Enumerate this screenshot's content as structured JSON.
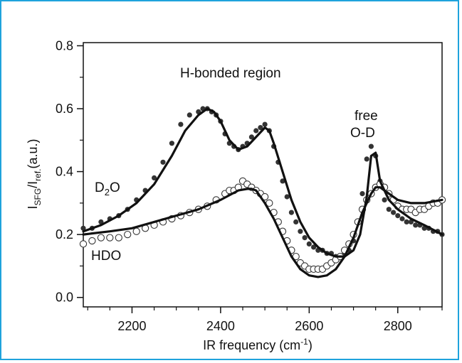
{
  "frame_color": "#1fa3dc",
  "chart_data": {
    "type": "line",
    "xlabel": "IR frequency (cm",
    "xlabel_sup": "-1",
    "xlabel_end": ")",
    "ylabel_main": "I",
    "ylabel_sub1": "SFG",
    "ylabel_mid": "/I",
    "ylabel_sub2": "ref.",
    "ylabel_end": "(a.u.)",
    "xlim": [
      2090,
      2900
    ],
    "ylim": [
      -0.03,
      0.81
    ],
    "x_ticks": [
      2200,
      2400,
      2600,
      2800
    ],
    "x_tick_labels": [
      "2200",
      "2400",
      "2600",
      "2800"
    ],
    "y_ticks": [
      0.0,
      0.2,
      0.4,
      0.6,
      0.8
    ],
    "y_tick_labels": [
      "0.0",
      "0.2",
      "0.4",
      "0.6",
      "0.8"
    ],
    "grid": false,
    "annotations": {
      "region": "H-bonded region",
      "free_line1": "free",
      "free_line2": "O-D",
      "d2o_main": "D",
      "d2o_sub": "2",
      "d2o_end": "O",
      "hdo": "HDO"
    },
    "series": [
      {
        "id": "d2o-data",
        "marker": "filled-circle",
        "color": "#333333",
        "x": [
          2090,
          2110,
          2130,
          2150,
          2170,
          2190,
          2210,
          2230,
          2250,
          2270,
          2290,
          2310,
          2330,
          2350,
          2360,
          2370,
          2380,
          2390,
          2400,
          2410,
          2420,
          2430,
          2440,
          2450,
          2460,
          2470,
          2480,
          2490,
          2500,
          2510,
          2520,
          2530,
          2540,
          2550,
          2560,
          2570,
          2580,
          2590,
          2600,
          2610,
          2620,
          2630,
          2640,
          2650,
          2660,
          2670,
          2680,
          2690,
          2700,
          2710,
          2720,
          2730,
          2740,
          2750,
          2760,
          2770,
          2780,
          2790,
          2800,
          2810,
          2820,
          2830,
          2840,
          2850,
          2860,
          2870,
          2880,
          2890,
          2900
        ],
        "y": [
          0.22,
          0.22,
          0.24,
          0.25,
          0.26,
          0.28,
          0.31,
          0.34,
          0.38,
          0.43,
          0.49,
          0.55,
          0.58,
          0.59,
          0.6,
          0.6,
          0.59,
          0.58,
          0.56,
          0.52,
          0.49,
          0.48,
          0.47,
          0.48,
          0.49,
          0.51,
          0.53,
          0.54,
          0.55,
          0.53,
          0.48,
          0.43,
          0.37,
          0.32,
          0.27,
          0.24,
          0.21,
          0.19,
          0.17,
          0.16,
          0.15,
          0.15,
          0.14,
          0.14,
          0.13,
          0.13,
          0.14,
          0.15,
          0.18,
          0.24,
          0.33,
          0.44,
          0.48,
          0.45,
          0.37,
          0.31,
          0.28,
          0.27,
          0.26,
          0.25,
          0.24,
          0.24,
          0.23,
          0.23,
          0.22,
          0.22,
          0.21,
          0.21,
          0.2
        ]
      },
      {
        "id": "hdo-data",
        "marker": "open-circle",
        "color": "#333333",
        "x": [
          2090,
          2110,
          2130,
          2150,
          2170,
          2190,
          2210,
          2230,
          2250,
          2270,
          2290,
          2310,
          2330,
          2350,
          2370,
          2390,
          2410,
          2420,
          2430,
          2440,
          2450,
          2460,
          2470,
          2480,
          2490,
          2500,
          2510,
          2520,
          2530,
          2540,
          2550,
          2560,
          2570,
          2580,
          2590,
          2600,
          2610,
          2620,
          2630,
          2640,
          2650,
          2660,
          2670,
          2680,
          2690,
          2700,
          2710,
          2720,
          2730,
          2740,
          2750,
          2760,
          2770,
          2780,
          2790,
          2800,
          2810,
          2820,
          2830,
          2840,
          2850,
          2860,
          2870,
          2880,
          2890,
          2900
        ],
        "y": [
          0.17,
          0.18,
          0.19,
          0.19,
          0.19,
          0.2,
          0.21,
          0.22,
          0.23,
          0.24,
          0.25,
          0.26,
          0.27,
          0.28,
          0.29,
          0.31,
          0.33,
          0.34,
          0.34,
          0.35,
          0.37,
          0.36,
          0.35,
          0.34,
          0.33,
          0.32,
          0.3,
          0.27,
          0.24,
          0.21,
          0.18,
          0.15,
          0.13,
          0.11,
          0.1,
          0.09,
          0.09,
          0.09,
          0.09,
          0.1,
          0.11,
          0.12,
          0.13,
          0.15,
          0.17,
          0.2,
          0.24,
          0.28,
          0.31,
          0.33,
          0.35,
          0.36,
          0.35,
          0.33,
          0.31,
          0.29,
          0.28,
          0.28,
          0.28,
          0.27,
          0.28,
          0.28,
          0.29,
          0.3,
          0.3,
          0.31
        ]
      },
      {
        "id": "d2o-fit",
        "style": "line",
        "color": "#111111",
        "x": [
          2090,
          2130,
          2170,
          2210,
          2250,
          2290,
          2320,
          2350,
          2370,
          2385,
          2400,
          2420,
          2440,
          2460,
          2480,
          2500,
          2510,
          2520,
          2540,
          2560,
          2580,
          2600,
          2620,
          2640,
          2660,
          2680,
          2700,
          2715,
          2730,
          2740,
          2750,
          2760,
          2780,
          2800,
          2830,
          2860,
          2900
        ],
        "y": [
          0.21,
          0.23,
          0.26,
          0.3,
          0.36,
          0.45,
          0.53,
          0.58,
          0.6,
          0.59,
          0.56,
          0.5,
          0.47,
          0.48,
          0.51,
          0.54,
          0.53,
          0.49,
          0.4,
          0.31,
          0.24,
          0.19,
          0.16,
          0.14,
          0.13,
          0.13,
          0.15,
          0.2,
          0.32,
          0.45,
          0.46,
          0.37,
          0.31,
          0.28,
          0.25,
          0.23,
          0.2
        ]
      },
      {
        "id": "hdo-fit",
        "style": "line",
        "color": "#111111",
        "x": [
          2090,
          2150,
          2200,
          2250,
          2300,
          2350,
          2400,
          2440,
          2460,
          2470,
          2480,
          2500,
          2520,
          2540,
          2560,
          2580,
          2600,
          2620,
          2640,
          2660,
          2680,
          2700,
          2720,
          2740,
          2750,
          2760,
          2780,
          2800,
          2830,
          2860,
          2900
        ],
        "y": [
          0.2,
          0.21,
          0.22,
          0.24,
          0.26,
          0.28,
          0.31,
          0.34,
          0.345,
          0.345,
          0.34,
          0.3,
          0.25,
          0.19,
          0.13,
          0.09,
          0.07,
          0.065,
          0.07,
          0.09,
          0.13,
          0.19,
          0.27,
          0.33,
          0.35,
          0.35,
          0.33,
          0.31,
          0.3,
          0.3,
          0.31
        ]
      }
    ]
  }
}
